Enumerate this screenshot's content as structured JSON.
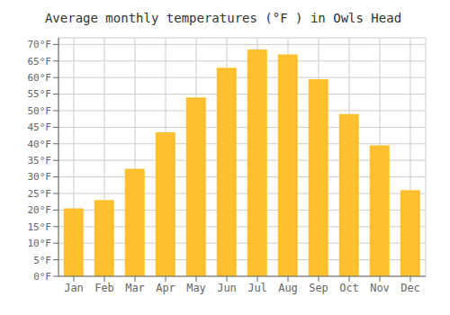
{
  "chart_data": {
    "type": "bar",
    "title": "Average monthly temperatures (°F ) in Owls Head",
    "categories": [
      "Jan",
      "Feb",
      "Mar",
      "Apr",
      "May",
      "Jun",
      "Jul",
      "Aug",
      "Sep",
      "Oct",
      "Nov",
      "Dec"
    ],
    "values": [
      20.5,
      23.0,
      32.5,
      43.5,
      54.0,
      63.0,
      68.5,
      67.0,
      59.5,
      49.0,
      39.5,
      26.0
    ],
    "color": "#FFC030",
    "ylim": [
      0,
      72
    ],
    "yticks": [
      {
        "value": 0,
        "label": "0°F"
      },
      {
        "value": 5,
        "label": "5°F"
      },
      {
        "value": 10,
        "label": "10°F"
      },
      {
        "value": 15,
        "label": "15°F"
      },
      {
        "value": 20,
        "label": "20°F"
      },
      {
        "value": 25,
        "label": "25°F"
      },
      {
        "value": 30,
        "label": "30°F"
      },
      {
        "value": 35,
        "label": "35°F"
      },
      {
        "value": 40,
        "label": "40°F"
      },
      {
        "value": 45,
        "label": "45°F"
      },
      {
        "value": 50,
        "label": "50°F"
      },
      {
        "value": 55,
        "label": "55°F"
      },
      {
        "value": 60,
        "label": "60°F"
      },
      {
        "value": 65,
        "label": "65°F"
      },
      {
        "value": 70,
        "label": "70°F"
      }
    ],
    "grid": true
  }
}
